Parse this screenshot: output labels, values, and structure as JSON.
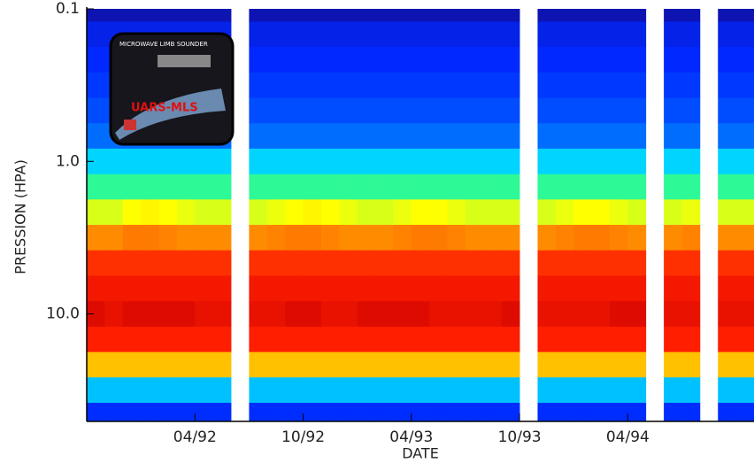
{
  "chart_data": {
    "type": "heatmap",
    "xlabel": "DATE",
    "ylabel": "PRESSION (HPA)",
    "x": [
      "1991-10",
      "1991-11",
      "1991-12",
      "1992-01",
      "1992-02",
      "1992-03",
      "1992-04",
      "1992-05",
      "1992-06",
      "1992-07",
      "1992-08",
      "1992-09",
      "1992-10",
      "1992-11",
      "1992-12",
      "1993-01",
      "1993-02",
      "1993-03",
      "1993-04",
      "1993-05",
      "1993-06",
      "1993-07",
      "1993-08",
      "1993-09",
      "1993-10",
      "1993-11",
      "1993-12",
      "1994-01",
      "1994-02",
      "1994-03",
      "1994-04",
      "1994-05",
      "1994-06",
      "1994-07",
      "1994-08",
      "1994-09",
      "1994-10"
    ],
    "y": [
      0.1,
      0.147,
      0.215,
      0.316,
      0.464,
      0.681,
      1,
      1.47,
      2.15,
      3.16,
      4.64,
      6.81,
      10,
      14.7,
      21.5,
      31.6,
      46.4
    ],
    "z": [
      [
        5,
        5,
        5,
        5,
        5,
        5,
        5,
        5,
        null,
        5,
        5,
        5,
        5,
        5,
        5,
        5,
        5,
        5,
        5,
        5,
        5,
        5,
        5,
        5,
        null,
        5,
        5,
        5,
        5,
        5,
        5,
        null,
        5,
        5,
        null,
        5,
        5
      ],
      [
        12,
        12,
        12,
        12,
        12,
        12,
        12,
        12,
        null,
        12,
        12,
        12,
        12,
        12,
        12,
        12,
        12,
        12,
        12,
        12,
        12,
        12,
        12,
        12,
        null,
        12,
        12,
        12,
        12,
        12,
        12,
        null,
        12,
        12,
        null,
        12,
        12
      ],
      [
        15,
        15,
        15,
        15,
        15,
        15,
        15,
        15,
        null,
        15,
        15,
        15,
        15,
        15,
        15,
        15,
        15,
        15,
        15,
        15,
        15,
        15,
        15,
        15,
        null,
        15,
        15,
        15,
        15,
        15,
        15,
        null,
        15,
        15,
        null,
        15,
        15
      ],
      [
        18,
        18,
        18,
        18,
        18,
        18,
        18,
        18,
        null,
        18,
        18,
        18,
        18,
        18,
        18,
        18,
        18,
        18,
        18,
        18,
        18,
        18,
        18,
        18,
        null,
        18,
        18,
        18,
        18,
        18,
        18,
        null,
        18,
        18,
        null,
        18,
        18
      ],
      [
        22,
        22,
        22,
        22,
        22,
        22,
        22,
        22,
        null,
        22,
        22,
        22,
        22,
        22,
        22,
        22,
        22,
        22,
        22,
        22,
        22,
        22,
        22,
        22,
        null,
        22,
        22,
        22,
        22,
        22,
        22,
        null,
        22,
        22,
        null,
        22,
        22
      ],
      [
        28,
        28,
        28,
        28,
        28,
        28,
        28,
        28,
        null,
        28,
        28,
        28,
        28,
        28,
        28,
        28,
        28,
        28,
        28,
        28,
        28,
        28,
        28,
        28,
        null,
        28,
        28,
        28,
        28,
        28,
        28,
        null,
        28,
        28,
        null,
        28,
        28
      ],
      [
        40,
        40,
        40,
        40,
        40,
        40,
        40,
        40,
        null,
        40,
        40,
        40,
        40,
        40,
        40,
        40,
        40,
        40,
        40,
        40,
        40,
        40,
        40,
        40,
        null,
        40,
        40,
        40,
        40,
        40,
        40,
        null,
        40,
        40,
        null,
        40,
        40
      ],
      [
        52,
        52,
        52,
        52,
        52,
        52,
        52,
        52,
        null,
        52,
        52,
        52,
        52,
        52,
        52,
        52,
        52,
        52,
        52,
        52,
        52,
        52,
        52,
        52,
        null,
        52,
        52,
        52,
        52,
        52,
        52,
        null,
        52,
        52,
        null,
        52,
        52
      ],
      [
        63,
        63,
        65,
        66,
        65,
        64,
        63,
        63,
        null,
        63,
        64,
        65,
        66,
        65,
        64,
        63,
        63,
        64,
        65,
        65,
        64,
        63,
        63,
        63,
        null,
        63,
        64,
        65,
        65,
        64,
        63,
        null,
        63,
        64,
        null,
        63,
        63
      ],
      [
        78,
        78,
        80,
        80,
        79,
        78,
        78,
        78,
        null,
        78,
        79,
        80,
        80,
        79,
        78,
        78,
        78,
        79,
        80,
        80,
        79,
        78,
        78,
        78,
        null,
        78,
        79,
        80,
        80,
        79,
        78,
        null,
        78,
        79,
        null,
        78,
        78
      ],
      [
        88,
        88,
        88,
        88,
        88,
        88,
        88,
        88,
        null,
        88,
        88,
        88,
        88,
        88,
        88,
        88,
        88,
        88,
        88,
        88,
        88,
        88,
        88,
        88,
        null,
        88,
        88,
        88,
        88,
        88,
        88,
        null,
        88,
        88,
        null,
        88,
        88
      ],
      [
        92,
        92,
        92,
        92,
        92,
        92,
        92,
        92,
        null,
        92,
        92,
        92,
        92,
        92,
        92,
        92,
        92,
        92,
        92,
        92,
        92,
        92,
        92,
        92,
        null,
        92,
        92,
        92,
        92,
        92,
        92,
        null,
        92,
        92,
        null,
        92,
        92
      ],
      [
        96,
        94,
        96,
        96,
        96,
        96,
        94,
        94,
        null,
        94,
        94,
        96,
        96,
        94,
        94,
        96,
        96,
        96,
        96,
        94,
        94,
        94,
        94,
        96,
        null,
        94,
        94,
        94,
        94,
        96,
        96,
        null,
        94,
        94,
        null,
        94,
        94
      ],
      [
        90,
        90,
        90,
        90,
        90,
        90,
        90,
        90,
        null,
        90,
        90,
        90,
        90,
        90,
        90,
        90,
        90,
        90,
        90,
        90,
        90,
        90,
        90,
        90,
        null,
        90,
        90,
        90,
        90,
        90,
        90,
        null,
        90,
        90,
        null,
        90,
        90
      ],
      [
        72,
        72,
        72,
        72,
        72,
        72,
        72,
        72,
        null,
        72,
        72,
        72,
        72,
        72,
        72,
        72,
        72,
        72,
        72,
        72,
        72,
        72,
        72,
        72,
        null,
        72,
        72,
        72,
        72,
        72,
        72,
        null,
        72,
        72,
        null,
        72,
        72
      ],
      [
        38,
        38,
        38,
        38,
        38,
        38,
        38,
        38,
        null,
        38,
        38,
        38,
        38,
        38,
        38,
        38,
        38,
        38,
        38,
        38,
        38,
        38,
        38,
        38,
        null,
        38,
        38,
        38,
        38,
        38,
        38,
        null,
        38,
        38,
        null,
        38,
        38
      ],
      [
        16,
        16,
        16,
        16,
        16,
        16,
        16,
        16,
        null,
        16,
        16,
        16,
        16,
        16,
        16,
        16,
        16,
        16,
        16,
        16,
        16,
        16,
        16,
        16,
        null,
        16,
        16,
        16,
        16,
        16,
        16,
        null,
        16,
        16,
        null,
        16,
        16
      ]
    ],
    "zlim": [
      0,
      100
    ],
    "colormap": "rainbow",
    "xlim": [
      "1991-10",
      "1994-11"
    ],
    "xticks": [
      {
        "value": "1992-04",
        "label": "04/92"
      },
      {
        "value": "1992-10",
        "label": "10/92"
      },
      {
        "value": "1993-04",
        "label": "04/93"
      },
      {
        "value": "1993-10",
        "label": "10/93"
      },
      {
        "value": "1994-04",
        "label": "04/94"
      }
    ],
    "ylim": [
      0.1,
      50
    ],
    "ylog": true,
    "yreverse": true,
    "yticks": [
      0.1,
      {
        "value": 1,
        "label": "1.0"
      },
      {
        "value": 10,
        "label": "10.0"
      }
    ]
  },
  "logo": {
    "title": "MICROWAVE LIMB SOUNDER",
    "name": "UARS-MLS"
  }
}
